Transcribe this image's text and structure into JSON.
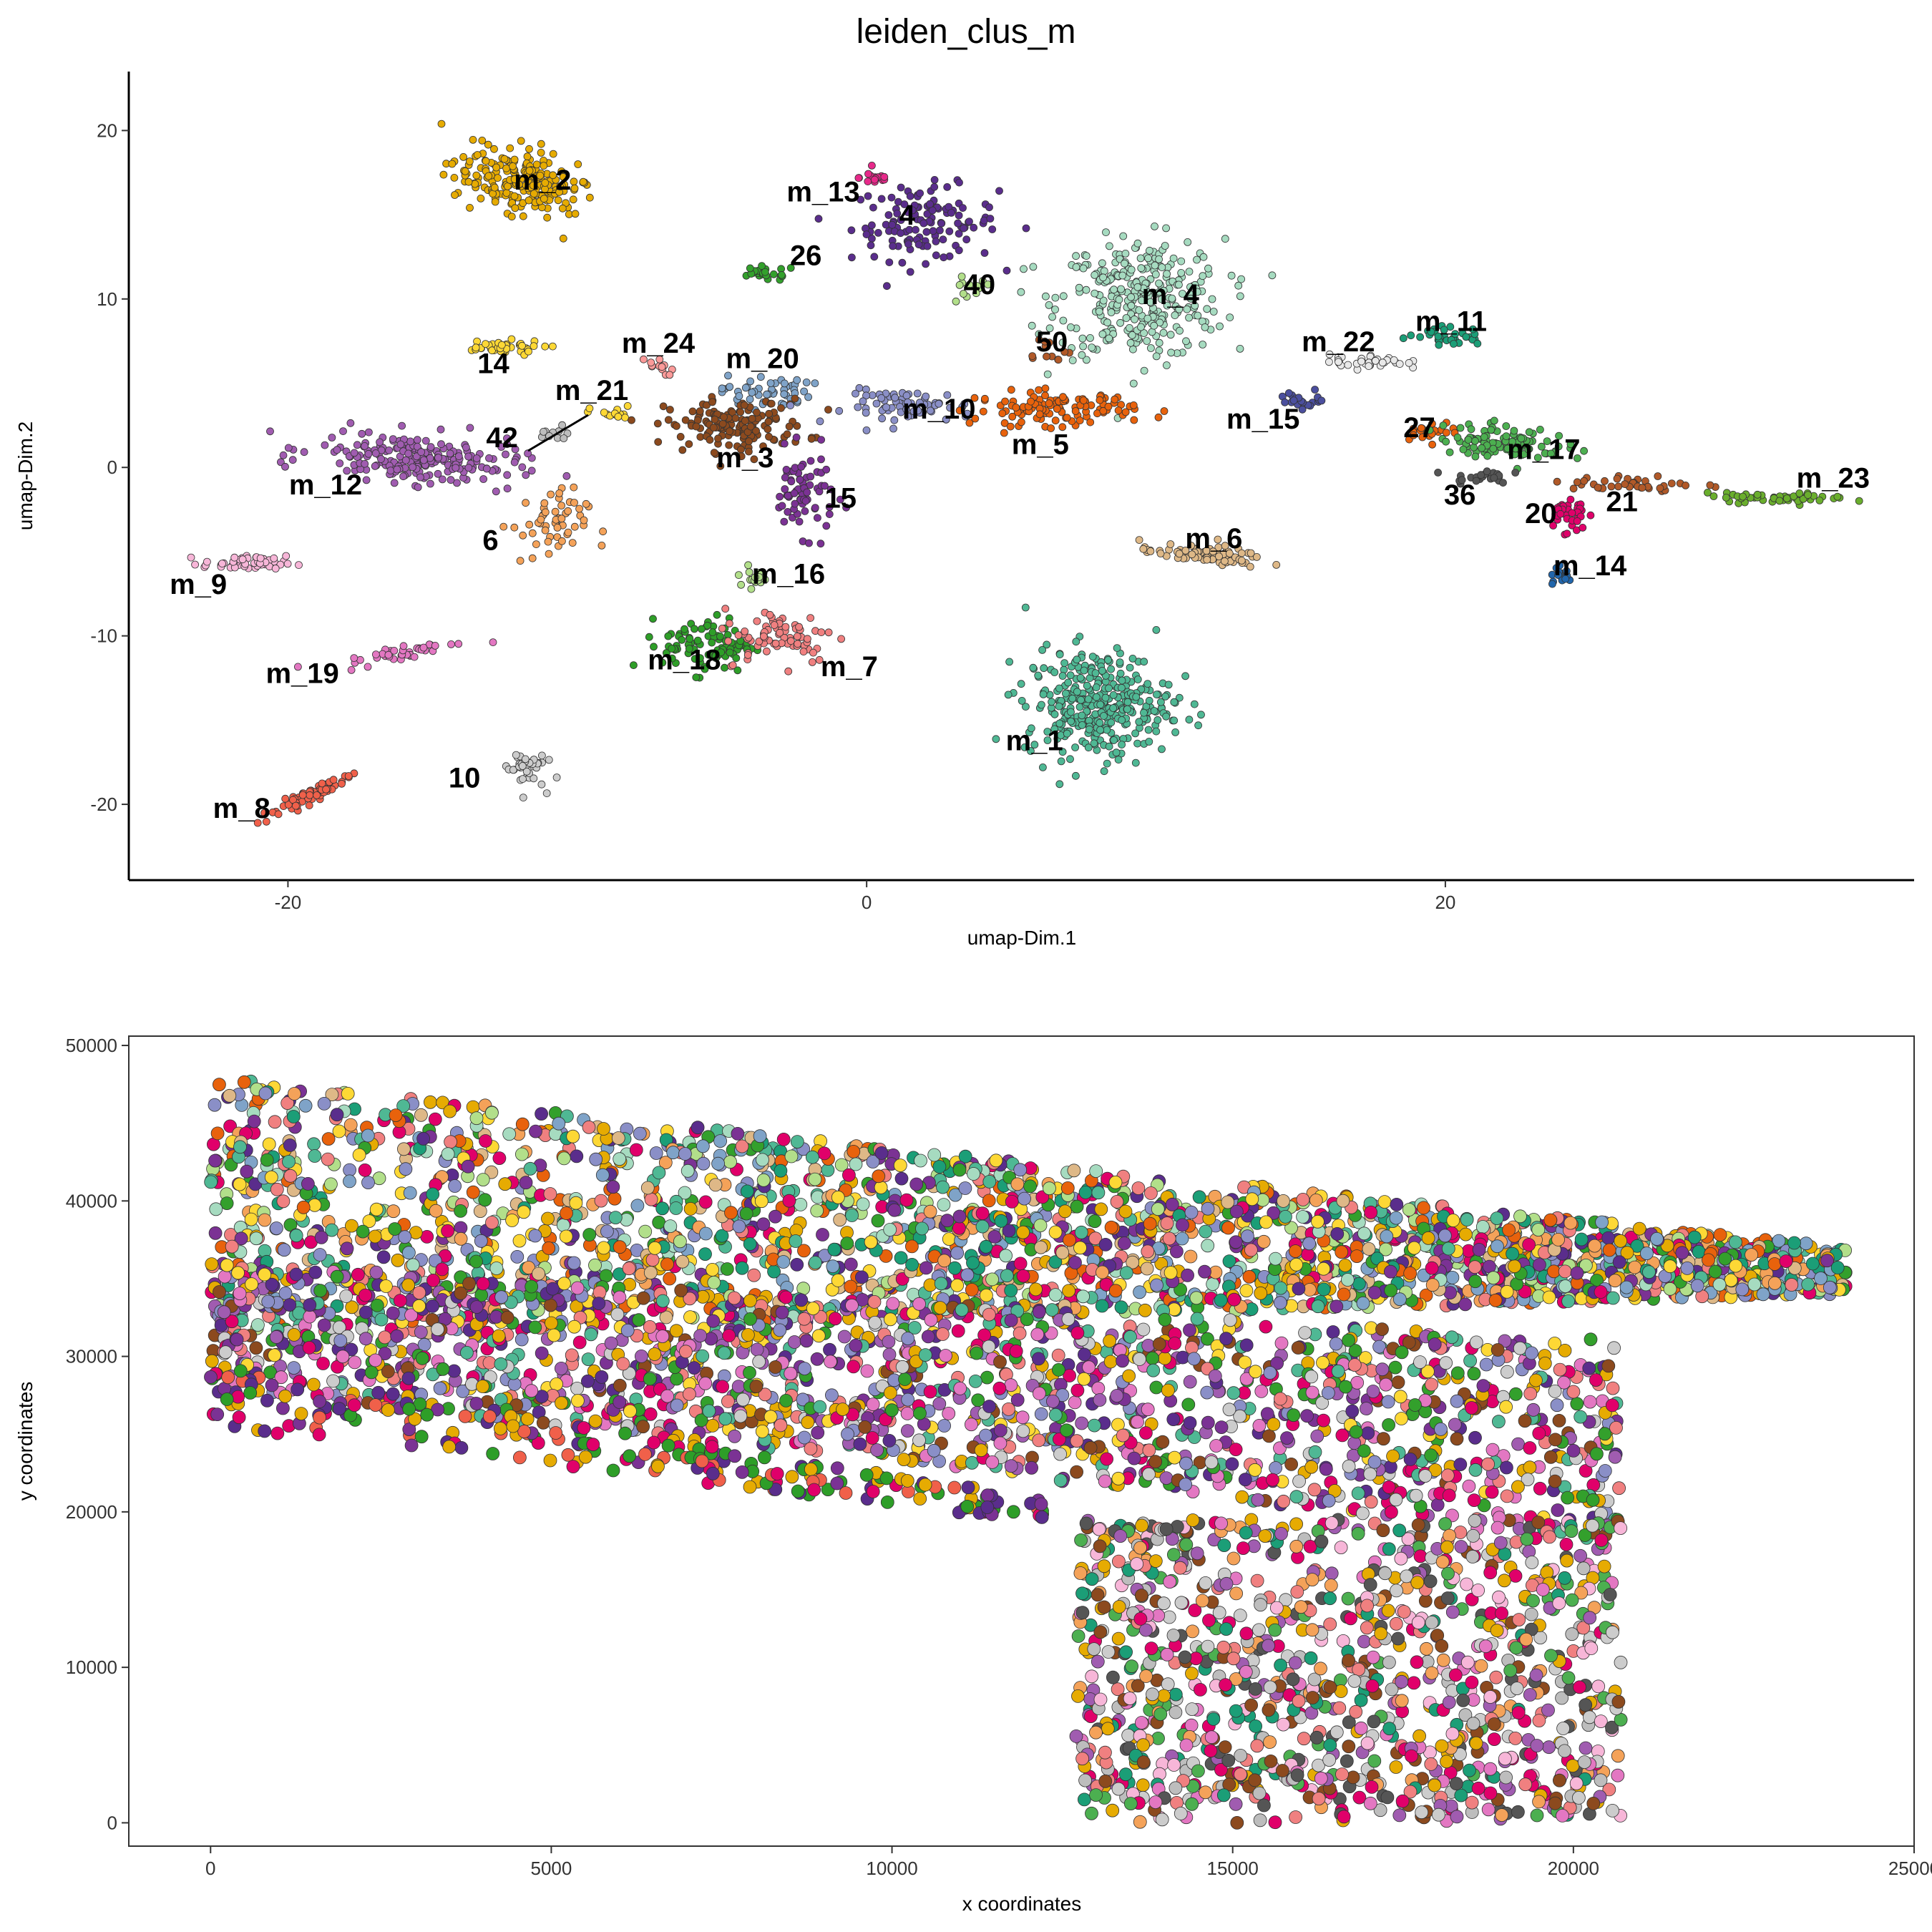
{
  "chart_data": [
    {
      "type": "scatter",
      "title": "leiden_clus_m",
      "xlabel": "umap-Dim.1",
      "ylabel": "umap-Dim.2",
      "xlim": [
        -25.5,
        36.2
      ],
      "ylim": [
        -24.5,
        23.5
      ],
      "xticks": [
        -20,
        0,
        20
      ],
      "yticks": [
        -20,
        -10,
        0,
        10,
        20
      ],
      "grid": false,
      "legend": "none",
      "clusters": [
        {
          "label": "m_2",
          "color": "#E6AB02",
          "center": [
            -12,
            17
          ],
          "spread": [
            2.2,
            1.6
          ],
          "angle": -38,
          "n": 220,
          "label_xy": [
            -11.2,
            16.5
          ]
        },
        {
          "label": "m_13",
          "color": "#5A2D8C",
          "center": [
            2.0,
            14.5
          ],
          "spread": [
            2.3,
            2.0
          ],
          "angle": 0,
          "n": 130,
          "label_xy": [
            -1.5,
            15.8
          ]
        },
        {
          "label": "4",
          "color": "#E7298A",
          "center": [
            0.3,
            17.2
          ],
          "spread": [
            0.5,
            0.4
          ],
          "angle": 0,
          "n": 18,
          "label_xy": [
            1.4,
            14.4
          ]
        },
        {
          "label": "26",
          "color": "#33A02C",
          "center": [
            -3.5,
            11.5
          ],
          "spread": [
            1.0,
            0.4
          ],
          "angle": 0,
          "n": 22,
          "label_xy": [
            -2.1,
            12.0
          ]
        },
        {
          "label": "40",
          "color": "#B2DF8A",
          "center": [
            3.5,
            10.5
          ],
          "spread": [
            0.8,
            0.8
          ],
          "angle": 0,
          "n": 12,
          "label_xy": [
            3.9,
            10.3
          ]
        },
        {
          "label": "m_4",
          "color": "#A6DBC0",
          "center": [
            9.5,
            10.0
          ],
          "spread": [
            2.6,
            3.2
          ],
          "angle": 0,
          "n": 320,
          "label_xy": [
            10.5,
            9.7
          ]
        },
        {
          "label": "50",
          "color": "#B15928",
          "center": [
            6.2,
            7.0
          ],
          "spread": [
            0.8,
            0.8
          ],
          "angle": 0,
          "n": 12,
          "label_xy": [
            6.4,
            6.9
          ]
        },
        {
          "label": "14",
          "color": "#FDD835",
          "center": [
            -12.8,
            7.1
          ],
          "spread": [
            1.5,
            0.4
          ],
          "angle": 0,
          "n": 40,
          "label_xy": [
            -12.9,
            5.6
          ]
        },
        {
          "label": "m_24",
          "color": "#FB9A99",
          "center": [
            -7.3,
            6.0
          ],
          "spread": [
            0.6,
            0.5
          ],
          "angle": 0,
          "n": 12,
          "label_xy": [
            -7.2,
            6.8
          ]
        },
        {
          "label": "m_20",
          "color": "#7FA3C8",
          "center": [
            -3.5,
            4.5
          ],
          "spread": [
            1.4,
            0.9
          ],
          "angle": 0,
          "n": 50,
          "label_xy": [
            -3.6,
            5.9
          ]
        },
        {
          "label": "m_21",
          "color": "#FDD835",
          "center": [
            -8.8,
            3.2
          ],
          "spread": [
            0.7,
            0.4
          ],
          "angle": 0,
          "n": 14,
          "label_xy": [
            -9.5,
            4.0
          ]
        },
        {
          "label": "42",
          "color": "#BDBDBD",
          "center": [
            -10.8,
            1.8
          ],
          "spread": [
            0.6,
            0.6
          ],
          "angle": 0,
          "n": 10,
          "label_xy": [
            -12.6,
            1.2
          ]
        },
        {
          "label": "m_3",
          "color": "#8C4A1E",
          "center": [
            -4.5,
            2.5
          ],
          "spread": [
            2.2,
            1.4
          ],
          "angle": 0,
          "n": 150,
          "label_xy": [
            -4.2,
            0.0
          ]
        },
        {
          "label": "m_10",
          "color": "#8A8FC7",
          "center": [
            1.5,
            3.6
          ],
          "spread": [
            2.0,
            0.9
          ],
          "angle": 0,
          "n": 70,
          "label_xy": [
            2.5,
            2.9
          ]
        },
        {
          "label": "m_5",
          "color": "#E8620C",
          "center": [
            6.5,
            3.5
          ],
          "spread": [
            2.5,
            0.9
          ],
          "angle": 0,
          "n": 120,
          "label_xy": [
            6.0,
            0.8
          ]
        },
        {
          "label": "15",
          "color": "#7B3294",
          "center": [
            -2.2,
            -1.5
          ],
          "spread": [
            1.0,
            2.2
          ],
          "angle": 0,
          "n": 70,
          "label_xy": [
            -0.9,
            -2.4
          ]
        },
        {
          "label": "m_12",
          "color": "#A05CB0",
          "center": [
            -15.5,
            0.5
          ],
          "spread": [
            3.2,
            1.3
          ],
          "angle": -8,
          "n": 220,
          "label_xy": [
            -18.7,
            -1.6
          ]
        },
        {
          "label": "6",
          "color": "#F4A259",
          "center": [
            -11.0,
            -3.5
          ],
          "spread": [
            1.2,
            2.0
          ],
          "angle": 0,
          "n": 55,
          "label_xy": [
            -13.0,
            -4.9
          ]
        },
        {
          "label": "m_9",
          "color": "#F7B6D8",
          "center": [
            -21.5,
            -5.7
          ],
          "spread": [
            1.3,
            0.4
          ],
          "angle": 0,
          "n": 50,
          "label_xy": [
            -23.1,
            -7.5
          ]
        },
        {
          "label": "m_16",
          "color": "#B2DF8A",
          "center": [
            -3.8,
            -6.5
          ],
          "spread": [
            0.6,
            0.6
          ],
          "angle": 0,
          "n": 20,
          "label_xy": [
            -2.7,
            -6.9
          ]
        },
        {
          "label": "m_18",
          "color": "#2E9E28",
          "center": [
            -5.5,
            -10.5
          ],
          "spread": [
            1.4,
            1.5
          ],
          "angle": 0,
          "n": 90,
          "label_xy": [
            -6.3,
            -12.0
          ]
        },
        {
          "label": "m_7",
          "color": "#F08080",
          "center": [
            -3.0,
            -10.0
          ],
          "spread": [
            1.8,
            1.5
          ],
          "angle": 0,
          "n": 75,
          "label_xy": [
            -0.6,
            -12.4
          ]
        },
        {
          "label": "m_19",
          "color": "#E377C2",
          "center": [
            -16.0,
            -11.0
          ],
          "spread": [
            2.0,
            0.4
          ],
          "angle": 20,
          "n": 40,
          "label_xy": [
            -19.5,
            -12.8
          ]
        },
        {
          "label": "m_1",
          "color": "#4FB894",
          "center": [
            8.0,
            -14.0
          ],
          "spread": [
            2.3,
            2.9
          ],
          "angle": 0,
          "n": 340,
          "label_xy": [
            5.8,
            -16.8
          ]
        },
        {
          "label": "10",
          "color": "#CCCCCC",
          "center": [
            -11.8,
            -17.8
          ],
          "spread": [
            0.6,
            1.1
          ],
          "angle": 0,
          "n": 40,
          "label_xy": [
            -13.9,
            -19.0
          ]
        },
        {
          "label": "m_8",
          "color": "#F0604A",
          "center": [
            -19.3,
            -19.5
          ],
          "spread": [
            1.9,
            0.35
          ],
          "angle": 42,
          "n": 65,
          "label_xy": [
            -21.6,
            -20.8
          ]
        },
        {
          "label": "m_6",
          "color": "#DEB887",
          "center": [
            11.6,
            -5.2
          ],
          "spread": [
            2.0,
            0.5
          ],
          "angle": -8,
          "n": 80,
          "label_xy": [
            12.0,
            -4.8
          ]
        },
        {
          "label": "m_22",
          "color": "#E8E8E8",
          "center": [
            17.3,
            6.3
          ],
          "spread": [
            1.2,
            0.4
          ],
          "angle": 0,
          "n": 35,
          "label_xy": [
            16.3,
            6.9
          ]
        },
        {
          "label": "m_11",
          "color": "#1B9E77",
          "center": [
            20.0,
            7.8
          ],
          "spread": [
            1.2,
            0.5
          ],
          "angle": 0,
          "n": 35,
          "label_xy": [
            20.2,
            8.1
          ]
        },
        {
          "label": "m_15",
          "color": "#4B4F9E",
          "center": [
            15.2,
            4.0
          ],
          "spread": [
            0.8,
            0.5
          ],
          "angle": 0,
          "n": 22,
          "label_xy": [
            13.7,
            2.3
          ]
        },
        {
          "label": "27",
          "color": "#E8620C",
          "center": [
            19.5,
            2.2
          ],
          "spread": [
            0.9,
            0.5
          ],
          "angle": 0,
          "n": 20,
          "label_xy": [
            19.1,
            1.8
          ]
        },
        {
          "label": "m_17",
          "color": "#4CAF50",
          "center": [
            22.0,
            1.5
          ],
          "spread": [
            2.0,
            0.9
          ],
          "angle": -8,
          "n": 100,
          "label_xy": [
            23.4,
            0.5
          ]
        },
        {
          "label": "36",
          "color": "#555555",
          "center": [
            21.2,
            -0.5
          ],
          "spread": [
            0.9,
            0.4
          ],
          "angle": 0,
          "n": 25,
          "label_xy": [
            20.5,
            -2.2
          ]
        },
        {
          "label": "20",
          "color": "#E0006A",
          "center": [
            24.2,
            -2.8
          ],
          "spread": [
            0.6,
            1.1
          ],
          "angle": 0,
          "n": 35,
          "label_xy": [
            23.3,
            -3.3
          ]
        },
        {
          "label": "21",
          "color": "#B15928",
          "center": [
            26.5,
            -1.0
          ],
          "spread": [
            2.0,
            0.5
          ],
          "angle": 0,
          "n": 40,
          "label_xy": [
            26.1,
            -2.6
          ]
        },
        {
          "label": "m_14",
          "color": "#2166AC",
          "center": [
            24.0,
            -6.5
          ],
          "spread": [
            0.4,
            0.6
          ],
          "angle": 0,
          "n": 16,
          "label_xy": [
            25.0,
            -6.4
          ]
        },
        {
          "label": "m_23",
          "color": "#6AAE2D",
          "center": [
            31.5,
            -1.8
          ],
          "spread": [
            2.2,
            0.25
          ],
          "angle": 0,
          "n": 45,
          "label_xy": [
            33.4,
            -1.2
          ]
        }
      ]
    },
    {
      "type": "scatter",
      "title": "",
      "xlabel": "x coordinates",
      "ylabel": "y coordinates",
      "xlim": [
        -1200,
        25000
      ],
      "ylim": [
        -1500,
        50600
      ],
      "xticks": [
        0,
        5000,
        10000,
        15000,
        20000,
        25000
      ],
      "yticks": [
        0,
        10000,
        20000,
        30000,
        40000,
        50000
      ],
      "grid": false,
      "legend": "none",
      "regions": [
        {
          "x": [
            0,
            24000
          ],
          "y_bottom": [
            31000,
            34000
          ],
          "y_top": [
            48000,
            37000
          ],
          "n": 2400,
          "palette": [
            "#A6DBC0",
            "#4FB894",
            "#1B9E77",
            "#E8620C",
            "#33A02C",
            "#E6AB02",
            "#FDD835",
            "#7B3294",
            "#F4A259",
            "#8A8FC7",
            "#E0006A",
            "#DEB887",
            "#F08080",
            "#B2DF8A",
            "#5A2D8C",
            "#7FA3C8"
          ]
        },
        {
          "x": [
            0,
            20700
          ],
          "y_bottom": [
            28000,
            18000
          ],
          "y_top": [
            36000,
            31000
          ],
          "n": 1700,
          "palette": [
            "#E6AB02",
            "#7B3294",
            "#A05CB0",
            "#5A2D8C",
            "#4FB894",
            "#F08080",
            "#33A02C",
            "#E0006A",
            "#8C4A1E",
            "#CCCCCC",
            "#FDD835",
            "#E377C2",
            "#8A8FC7"
          ]
        },
        {
          "x": [
            0,
            12300
          ],
          "y_bottom": [
            25500,
            19300
          ],
          "y_top": [
            29500,
            20800
          ],
          "n": 220,
          "palette": [
            "#5A2D8C",
            "#E0006A",
            "#2E9E28",
            "#7B3294",
            "#F0604A",
            "#E6AB02"
          ]
        },
        {
          "x": [
            12700,
            20700
          ],
          "y_bottom": [
            0,
            0
          ],
          "y_top": [
            19500,
            19500
          ],
          "n": 1100,
          "palette": [
            "#A05CB0",
            "#F7B6D8",
            "#CCCCCC",
            "#4CAF50",
            "#E0006A",
            "#F08080",
            "#8C4A1E",
            "#E377C2",
            "#E6AB02",
            "#1B9E77",
            "#555555",
            "#F4A259",
            "#BDBDBD"
          ]
        }
      ]
    }
  ]
}
